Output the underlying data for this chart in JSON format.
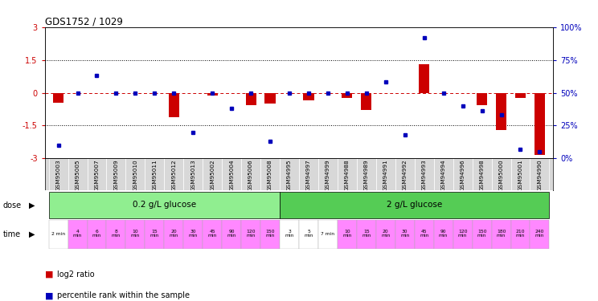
{
  "title": "GDS1752 / 1029",
  "samples": [
    "GSM95003",
    "GSM95005",
    "GSM95007",
    "GSM95009",
    "GSM95010",
    "GSM95011",
    "GSM95012",
    "GSM95013",
    "GSM95002",
    "GSM95004",
    "GSM95006",
    "GSM95008",
    "GSM94995",
    "GSM94997",
    "GSM94999",
    "GSM94988",
    "GSM94989",
    "GSM94991",
    "GSM94992",
    "GSM94993",
    "GSM94994",
    "GSM94996",
    "GSM94998",
    "GSM95000",
    "GSM95001",
    "GSM94990"
  ],
  "log2_ratio": [
    -0.45,
    -0.03,
    -0.03,
    -0.03,
    -0.03,
    -0.03,
    -1.1,
    -0.03,
    -0.12,
    -0.03,
    -0.55,
    -0.5,
    -0.03,
    -0.35,
    -0.03,
    -0.25,
    -0.8,
    -0.03,
    -0.03,
    1.3,
    -0.03,
    -0.03,
    -0.55,
    -1.7,
    -0.22,
    -2.85
  ],
  "percentile": [
    10,
    50,
    63,
    50,
    50,
    50,
    50,
    20,
    50,
    38,
    50,
    13,
    50,
    50,
    50,
    50,
    50,
    58,
    18,
    92,
    50,
    40,
    36,
    33,
    7,
    5
  ],
  "dose_groups": [
    {
      "label": "0.2 g/L glucose",
      "start": 0,
      "end": 12,
      "color": "#90ee90"
    },
    {
      "label": "2 g/L glucose",
      "start": 12,
      "end": 26,
      "color": "#55cc55"
    }
  ],
  "time_labels": [
    "2 min",
    "4\nmin",
    "6\nmin",
    "8\nmin",
    "10\nmin",
    "15\nmin",
    "20\nmin",
    "30\nmin",
    "45\nmin",
    "90\nmin",
    "120\nmin",
    "150\nmin",
    "3\nmin",
    "5\nmin",
    "7 min",
    "10\nmin",
    "15\nmin",
    "20\nmin",
    "30\nmin",
    "45\nmin",
    "90\nmin",
    "120\nmin",
    "150\nmin",
    "180\nmin",
    "210\nmin",
    "240\nmin"
  ],
  "time_colors": [
    "#ffffff",
    "#ff88ff",
    "#ff88ff",
    "#ff88ff",
    "#ff88ff",
    "#ff88ff",
    "#ff88ff",
    "#ff88ff",
    "#ff88ff",
    "#ff88ff",
    "#ff88ff",
    "#ff88ff",
    "#ffffff",
    "#ffffff",
    "#ffffff",
    "#ff88ff",
    "#ff88ff",
    "#ff88ff",
    "#ff88ff",
    "#ff88ff",
    "#ff88ff",
    "#ff88ff",
    "#ff88ff",
    "#ff88ff",
    "#ff88ff",
    "#ff88ff"
  ],
  "ylim": [
    -3,
    3
  ],
  "yticks_left": [
    -3,
    -1.5,
    0,
    1.5,
    3
  ],
  "ytick_labels_left": [
    "-3",
    "-1.5",
    "0",
    "1.5",
    "3"
  ],
  "y2ticks_pct": [
    0,
    25,
    50,
    75,
    100
  ],
  "y2labels": [
    "0%",
    "25%",
    "50%",
    "75%",
    "100%"
  ],
  "bar_color": "#cc0000",
  "dot_color": "#0000bb",
  "hline0_color": "#cc0000",
  "hline0_style": "-.",
  "gridline_color": "#000000",
  "gridline_style": ":"
}
